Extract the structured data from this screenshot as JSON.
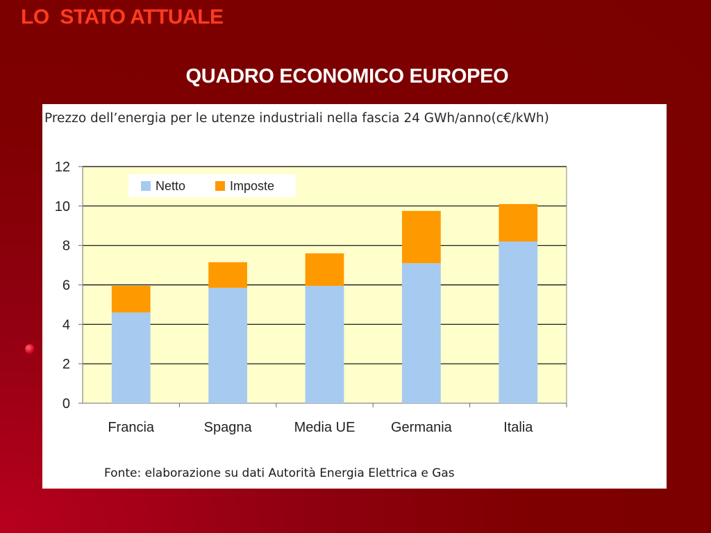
{
  "slide": {
    "title": "LO  STATO ATTUALE",
    "subtitle": "QUADRO ECONOMICO EUROPEO"
  },
  "figure": {
    "caption": "Prezzo dell’energia per le utenze industriali nella fascia 24 GWh/anno(c€/kWh)",
    "source": "Fonte: elaborazione su dati Autorità Energia Elettrica e Gas"
  },
  "chart_data": {
    "type": "bar",
    "stacked": true,
    "categories": [
      "Francia",
      "Spagna",
      "Media UE",
      "Germania",
      "Italia"
    ],
    "series": [
      {
        "name": "Netto",
        "values": [
          4.6,
          5.85,
          5.95,
          7.1,
          8.2
        ],
        "color": "#a6caf0"
      },
      {
        "name": "Imposte",
        "values": [
          1.35,
          1.3,
          1.65,
          2.65,
          1.9
        ],
        "color": "#ff9900"
      }
    ],
    "ylim": [
      0,
      12
    ],
    "yticks": [
      "0",
      "2",
      "4",
      "6",
      "8",
      "10",
      "12"
    ],
    "xlabel": "",
    "ylabel": "",
    "grid": true,
    "legend": "top-left",
    "plot_background": "#ffffcc"
  }
}
